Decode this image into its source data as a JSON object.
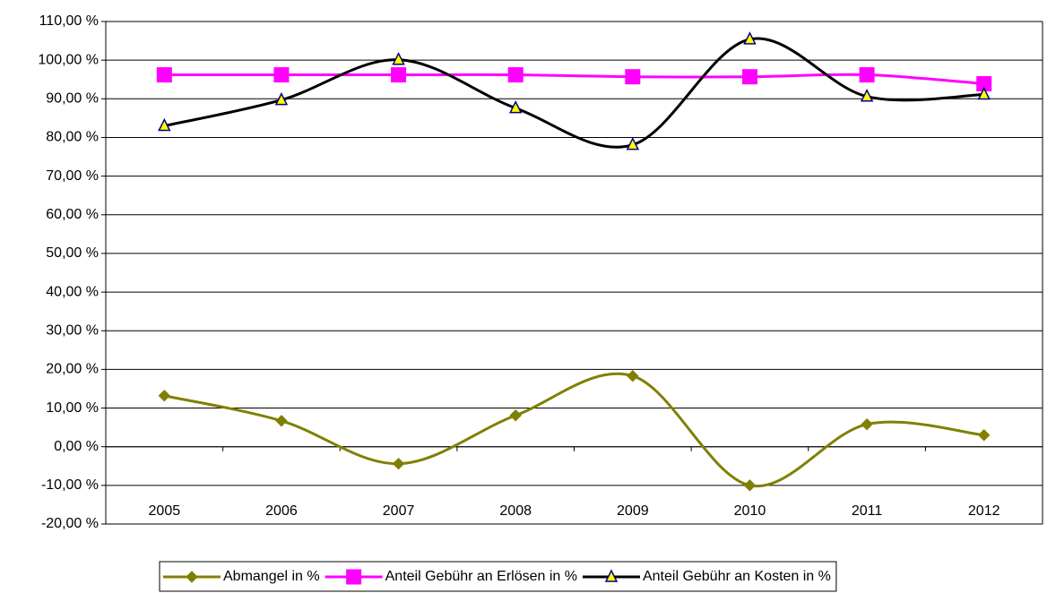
{
  "chart_data": {
    "type": "line",
    "categories": [
      "2005",
      "2006",
      "2007",
      "2008",
      "2009",
      "2010",
      "2011",
      "2012"
    ],
    "series": [
      {
        "name": "Abmangel in %",
        "color": "#808000",
        "marker": "diamond",
        "marker_fill": "#808000",
        "values": [
          13.2,
          6.7,
          -4.4,
          8.1,
          18.3,
          -10.0,
          5.8,
          3.0
        ]
      },
      {
        "name": "Anteil Gebühr an Erlösen in %",
        "color": "#ff00ff",
        "marker": "square",
        "marker_fill": "#ff00ff",
        "values": [
          96.2,
          96.2,
          96.2,
          96.2,
          95.7,
          95.7,
          96.2,
          93.9
        ]
      },
      {
        "name": "Anteil Gebühr an Kosten in %",
        "color": "#000000",
        "marker": "triangle",
        "marker_fill": "#ffff00",
        "values": [
          83.0,
          89.7,
          100.1,
          87.6,
          78.1,
          105.4,
          90.6,
          91.1
        ]
      }
    ],
    "ylim": [
      -20,
      110
    ],
    "yticks": [
      {
        "value": -20,
        "label": "-20,00 %"
      },
      {
        "value": -10,
        "label": "-10,00 %"
      },
      {
        "value": 0,
        "label": "0,00 %"
      },
      {
        "value": 10,
        "label": "10,00 %"
      },
      {
        "value": 20,
        "label": "20,00 %"
      },
      {
        "value": 30,
        "label": "30,00 %"
      },
      {
        "value": 40,
        "label": "40,00 %"
      },
      {
        "value": 50,
        "label": "50,00 %"
      },
      {
        "value": 60,
        "label": "60,00 %"
      },
      {
        "value": 70,
        "label": "70,00 %"
      },
      {
        "value": 80,
        "label": "80,00 %"
      },
      {
        "value": 90,
        "label": "90,00 %"
      },
      {
        "value": 100,
        "label": "100,00 %"
      },
      {
        "value": 110,
        "label": "110,00 %"
      }
    ],
    "grid": true,
    "smooth": true,
    "legend": "bottom"
  }
}
